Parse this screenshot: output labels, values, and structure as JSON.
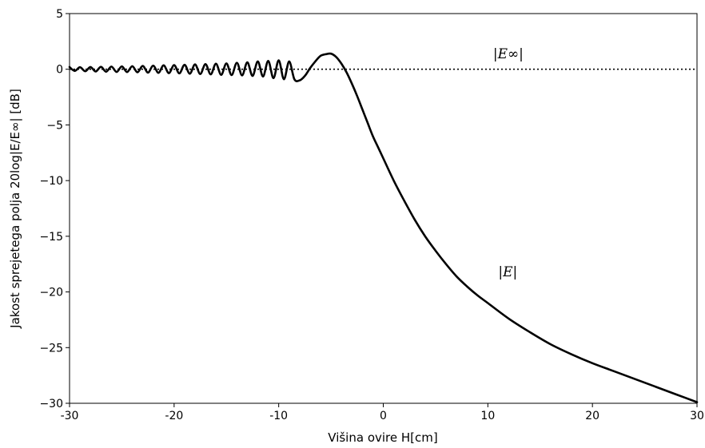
{
  "chart_data": {
    "type": "line",
    "title": "",
    "xlabel": "Višina ovire H[cm]",
    "ylabel": "Jakost sprejetega polja 20log|E/E∞| [dB]",
    "xlim": [
      -30,
      30
    ],
    "ylim": [
      -30,
      5
    ],
    "x_ticks": [
      -30,
      -20,
      -10,
      0,
      10,
      20,
      30
    ],
    "x_tick_labels": [
      "-30",
      "-20",
      "-10",
      "0",
      "10",
      "20",
      "30"
    ],
    "y_ticks": [
      5,
      0,
      -5,
      -10,
      -15,
      -20,
      -25,
      -30
    ],
    "y_tick_labels": [
      "5",
      "0",
      "−5",
      "−10",
      "−15",
      "−20",
      "−25",
      "−30"
    ],
    "grid": false,
    "series": [
      {
        "name": "|E|",
        "style": "solid",
        "color": "#000000",
        "x": [
          -30,
          -29.5,
          -29,
          -28.5,
          -28,
          -27.5,
          -27,
          -26.5,
          -26,
          -25.5,
          -25,
          -24.5,
          -24,
          -23.5,
          -23,
          -22.5,
          -22,
          -21.5,
          -21,
          -20.5,
          -20,
          -19.5,
          -19,
          -18.5,
          -18,
          -17.5,
          -17,
          -16.5,
          -16,
          -15.5,
          -15,
          -14.5,
          -14,
          -13.5,
          -13,
          -12.5,
          -12,
          -11.5,
          -11,
          -10.5,
          -10,
          -9.5,
          -9,
          -8.5,
          -8,
          -7.5,
          -7,
          -6.5,
          -6,
          -5.5,
          -5,
          -4.5,
          -4,
          -3.5,
          -3,
          -2.5,
          -2,
          -1.5,
          -1,
          -0.5,
          0,
          1,
          2,
          3,
          4,
          5,
          6,
          7,
          8,
          9,
          10,
          12,
          14,
          16,
          18,
          20,
          22,
          24,
          26,
          28,
          30
        ],
        "y": [
          0.2,
          -0.15,
          0.18,
          -0.18,
          0.2,
          -0.2,
          0.22,
          -0.22,
          0.24,
          -0.24,
          0.25,
          -0.25,
          0.27,
          -0.27,
          0.3,
          -0.3,
          0.32,
          -0.32,
          0.35,
          -0.35,
          0.37,
          -0.37,
          0.4,
          -0.4,
          0.43,
          -0.43,
          0.46,
          -0.46,
          0.5,
          -0.5,
          0.52,
          -0.52,
          0.58,
          -0.55,
          0.62,
          -0.6,
          0.7,
          -0.65,
          0.75,
          -0.8,
          0.8,
          -0.9,
          0.7,
          -0.9,
          -1.0,
          -0.6,
          0.1,
          0.7,
          1.2,
          1.35,
          1.4,
          1.1,
          0.5,
          -0.3,
          -1.3,
          -2.4,
          -3.6,
          -4.8,
          -6.0,
          -7.0,
          -8.0,
          -10.0,
          -11.8,
          -13.5,
          -15.0,
          -16.3,
          -17.5,
          -18.6,
          -19.5,
          -20.3,
          -21.0,
          -22.4,
          -23.6,
          -24.7,
          -25.6,
          -26.4,
          -27.1,
          -27.8,
          -28.5,
          -29.2,
          -29.9
        ]
      },
      {
        "name": "|E∞|",
        "style": "dotted",
        "color": "#000000",
        "x": [
          -30,
          30
        ],
        "y": [
          0,
          0
        ]
      }
    ],
    "annotations": [
      {
        "text": "|E∞|",
        "x": 10.5,
        "y": 1.0
      },
      {
        "text": "|E|",
        "x": 11,
        "y": -18.6
      }
    ],
    "legend": "none"
  }
}
